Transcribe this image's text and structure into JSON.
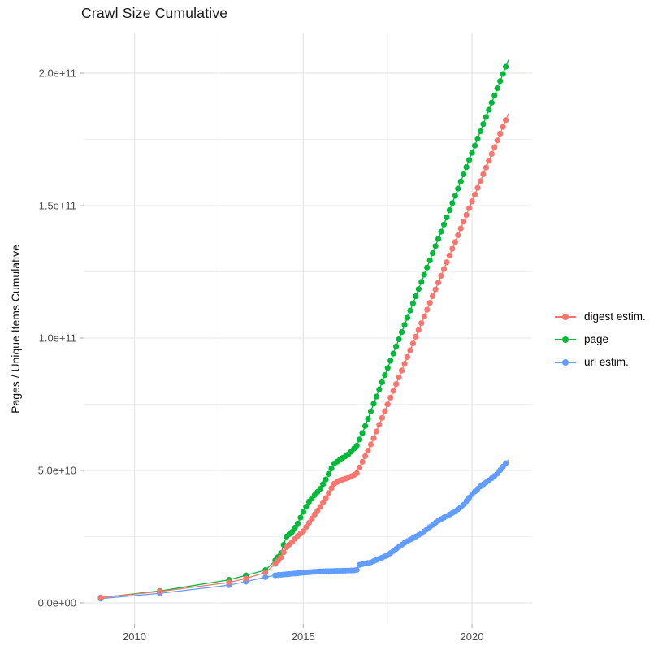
{
  "title": "Crawl Size Cumulative",
  "y_axis": {
    "label": "Pages / Unique Items Cumulative",
    "tick_labels": [
      "0.0e+00",
      "5.0e+10",
      "1.0e+11",
      "1.5e+11",
      "2.0e+11"
    ],
    "tick_values_e10": [
      0,
      5,
      10,
      15,
      20
    ],
    "minor_values_e10": [
      2.5,
      7.5,
      12.5,
      17.5
    ]
  },
  "x_axis": {
    "tick_labels": [
      "2010",
      "2015",
      "2020"
    ],
    "tick_values": [
      2010,
      2015,
      2020
    ],
    "minor_values": [
      2012.5,
      2017.5
    ]
  },
  "legend": [
    {
      "label": "digest estim.",
      "color": "#F8766D"
    },
    {
      "label": "page",
      "color": "#00BA38"
    },
    {
      "label": "url estim.",
      "color": "#619CFF"
    }
  ],
  "colors": {
    "grid_major": "#e3e3e3",
    "grid_minor": "#f1f1f1",
    "tick_mark": "#b3b3b3",
    "axis_text": "#4d4d4d",
    "title_text": "#1a1a1a"
  },
  "chart_data": {
    "type": "scatter",
    "title": "Crawl Size Cumulative",
    "xlabel": "",
    "ylabel": "Pages / Unique Items Cumulative",
    "x_unit": "year",
    "y_unit": "count (units of 1e10)",
    "xlim": [
      2008.4,
      2021.7
    ],
    "ylim_e10": [
      -0.8,
      21.5
    ],
    "grid": "on",
    "legend_position": "right",
    "point_style": "filled-dot-with-line",
    "sparse_point_years": [
      2009.0,
      2010.75,
      2012.8,
      2013.3,
      2013.88
    ],
    "dense_points_start_year": 2014.17,
    "dense_points_interval_years": 0.0833,
    "end_year": 2021.08,
    "series": [
      {
        "name": "url estim.",
        "color": "#619CFF",
        "breakpoints": [
          [
            2009.0,
            0.16
          ],
          [
            2010.75,
            0.36
          ],
          [
            2012.8,
            0.67
          ],
          [
            2013.3,
            0.8
          ],
          [
            2013.88,
            0.97
          ],
          [
            2014.17,
            1.04
          ],
          [
            2014.5,
            1.08
          ],
          [
            2015.0,
            1.14
          ],
          [
            2015.5,
            1.19
          ],
          [
            2016.08,
            1.21
          ],
          [
            2016.58,
            1.23
          ],
          [
            2016.67,
            1.44
          ],
          [
            2017.0,
            1.53
          ],
          [
            2017.5,
            1.8
          ],
          [
            2018.0,
            2.27
          ],
          [
            2018.5,
            2.62
          ],
          [
            2019.0,
            3.1
          ],
          [
            2019.5,
            3.45
          ],
          [
            2019.75,
            3.7
          ],
          [
            2020.0,
            4.1
          ],
          [
            2020.25,
            4.4
          ],
          [
            2020.5,
            4.62
          ],
          [
            2020.75,
            4.88
          ],
          [
            2021.08,
            5.4
          ]
        ]
      },
      {
        "name": "page",
        "color": "#00BA38",
        "breakpoints": [
          [
            2009.0,
            0.2
          ],
          [
            2010.75,
            0.45
          ],
          [
            2012.8,
            0.87
          ],
          [
            2013.3,
            1.04
          ],
          [
            2013.88,
            1.24
          ],
          [
            2014.17,
            1.6
          ],
          [
            2014.33,
            1.85
          ],
          [
            2014.5,
            2.5
          ],
          [
            2014.67,
            2.68
          ],
          [
            2014.83,
            2.98
          ],
          [
            2015.0,
            3.43
          ],
          [
            2015.17,
            3.82
          ],
          [
            2015.33,
            4.06
          ],
          [
            2015.5,
            4.3
          ],
          [
            2015.67,
            4.66
          ],
          [
            2015.83,
            5.06
          ],
          [
            2015.92,
            5.26
          ],
          [
            2016.08,
            5.4
          ],
          [
            2016.33,
            5.6
          ],
          [
            2016.58,
            5.92
          ],
          [
            2016.75,
            6.4
          ],
          [
            2016.92,
            6.95
          ],
          [
            2017.08,
            7.5
          ],
          [
            2021.08,
            20.5
          ]
        ]
      },
      {
        "name": "digest estim.",
        "color": "#F8766D",
        "breakpoints": [
          [
            2009.0,
            0.2
          ],
          [
            2010.75,
            0.43
          ],
          [
            2012.8,
            0.77
          ],
          [
            2013.3,
            0.92
          ],
          [
            2013.88,
            1.15
          ],
          [
            2014.17,
            1.47
          ],
          [
            2014.33,
            1.7
          ],
          [
            2014.5,
            2.1
          ],
          [
            2014.67,
            2.3
          ],
          [
            2014.83,
            2.52
          ],
          [
            2015.0,
            2.7
          ],
          [
            2015.17,
            3.02
          ],
          [
            2015.33,
            3.32
          ],
          [
            2015.5,
            3.62
          ],
          [
            2015.67,
            3.96
          ],
          [
            2015.83,
            4.32
          ],
          [
            2015.92,
            4.5
          ],
          [
            2016.08,
            4.62
          ],
          [
            2016.33,
            4.72
          ],
          [
            2016.58,
            4.88
          ],
          [
            2016.75,
            5.32
          ],
          [
            2016.92,
            5.75
          ],
          [
            2017.08,
            6.2
          ],
          [
            2021.08,
            18.47
          ]
        ]
      }
    ]
  }
}
